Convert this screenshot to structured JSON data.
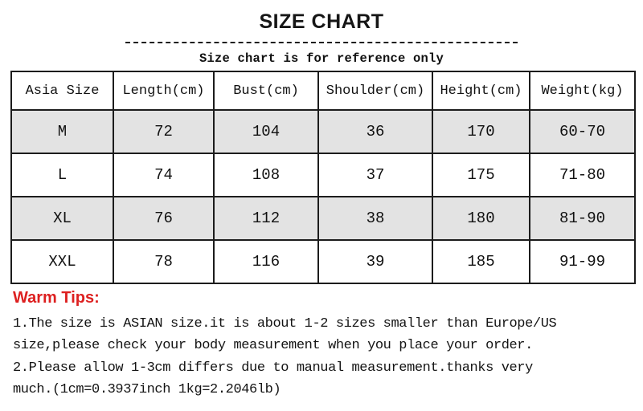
{
  "page": {
    "title": "SIZE CHART",
    "subtitle": "Size chart is for reference only"
  },
  "chart_data": {
    "type": "table",
    "title": "SIZE CHART",
    "columns": [
      "Asia Size",
      "Length(cm)",
      "Bust(cm)",
      "Shoulder(cm)",
      "Height(cm)",
      "Weight(kg)"
    ],
    "rows": [
      [
        "M",
        "72",
        "104",
        "36",
        "170",
        "60-70"
      ],
      [
        "L",
        "74",
        "108",
        "37",
        "175",
        "71-80"
      ],
      [
        "XL",
        "76",
        "112",
        "38",
        "180",
        "81-90"
      ],
      [
        "XXL",
        "78",
        "116",
        "39",
        "185",
        "91-99"
      ]
    ]
  },
  "warm_tips": {
    "heading": "Warm Tips:",
    "lines": [
      "1.The size is ASIAN size.it is about 1-2 sizes smaller than Europe/US",
      "size,please check your body measurement when you place your order.",
      "2.Please allow 1-3cm differs due to manual measurement.thanks very",
      "much.(1cm=0.3937inch 1kg=2.2046lb)"
    ]
  },
  "colors": {
    "shaded_row": "#e3e3e3",
    "table_border": "#1c1c1c",
    "warm_tips_red": "#dd2020",
    "text": "#111111"
  }
}
